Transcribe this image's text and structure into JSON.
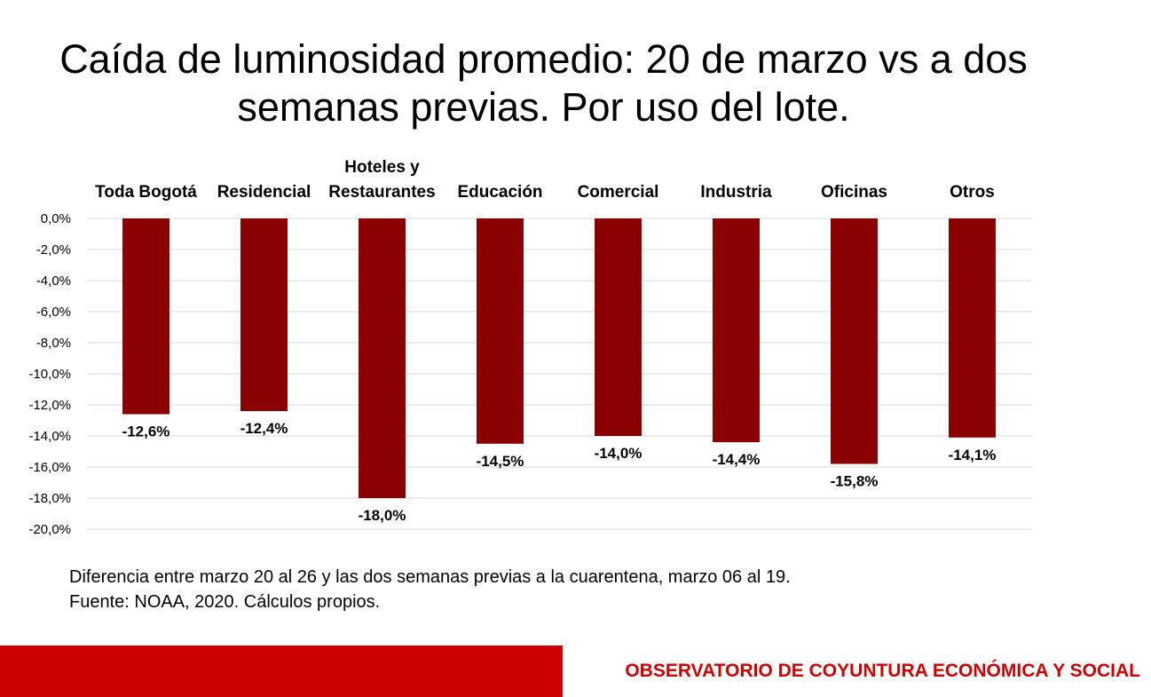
{
  "title": "Caída de luminosidad promedio: 20 de marzo vs a dos semanas previas. Por uso del lote.",
  "chart_data": {
    "type": "bar",
    "categories": [
      [
        "Toda Bogotá"
      ],
      [
        "Residencial"
      ],
      [
        "Hoteles y",
        "Restaurantes"
      ],
      [
        "Educación"
      ],
      [
        "Comercial"
      ],
      [
        "Industria"
      ],
      [
        "Oficinas"
      ],
      [
        "Otros"
      ]
    ],
    "values": [
      -12.6,
      -12.4,
      -18.0,
      -14.5,
      -14.0,
      -14.4,
      -15.8,
      -14.1
    ],
    "data_labels": [
      "-12,6%",
      "-12,4%",
      "-18,0%",
      "-14,5%",
      "-14,0%",
      "-14,4%",
      "-15,8%",
      "-14,1%"
    ],
    "ylim": [
      -20,
      0
    ],
    "yticks": [
      0,
      -2,
      -4,
      -6,
      -8,
      -10,
      -12,
      -14,
      -16,
      -18,
      -20
    ],
    "ytick_labels": [
      "0,0%",
      "-2,0%",
      "-4,0%",
      "-6,0%",
      "-8,0%",
      "-10,0%",
      "-12,0%",
      "-14,0%",
      "-16,0%",
      "-18,0%",
      "-20,0%"
    ],
    "grid": true,
    "legend": "none",
    "bar_color": "#8b0000",
    "category_position": "top"
  },
  "notes": {
    "line1": "Diferencia entre marzo 20 al 26 y las dos semanas previas a la cuarentena, marzo 06 al 19.",
    "line2": "Fuente: NOAA, 2020. Cálculos propios."
  },
  "footer": {
    "brand": "OBSERVATORIO DE COYUNTURA ECONÓMICA Y SOCIAL",
    "bar_color": "#cc0000"
  }
}
